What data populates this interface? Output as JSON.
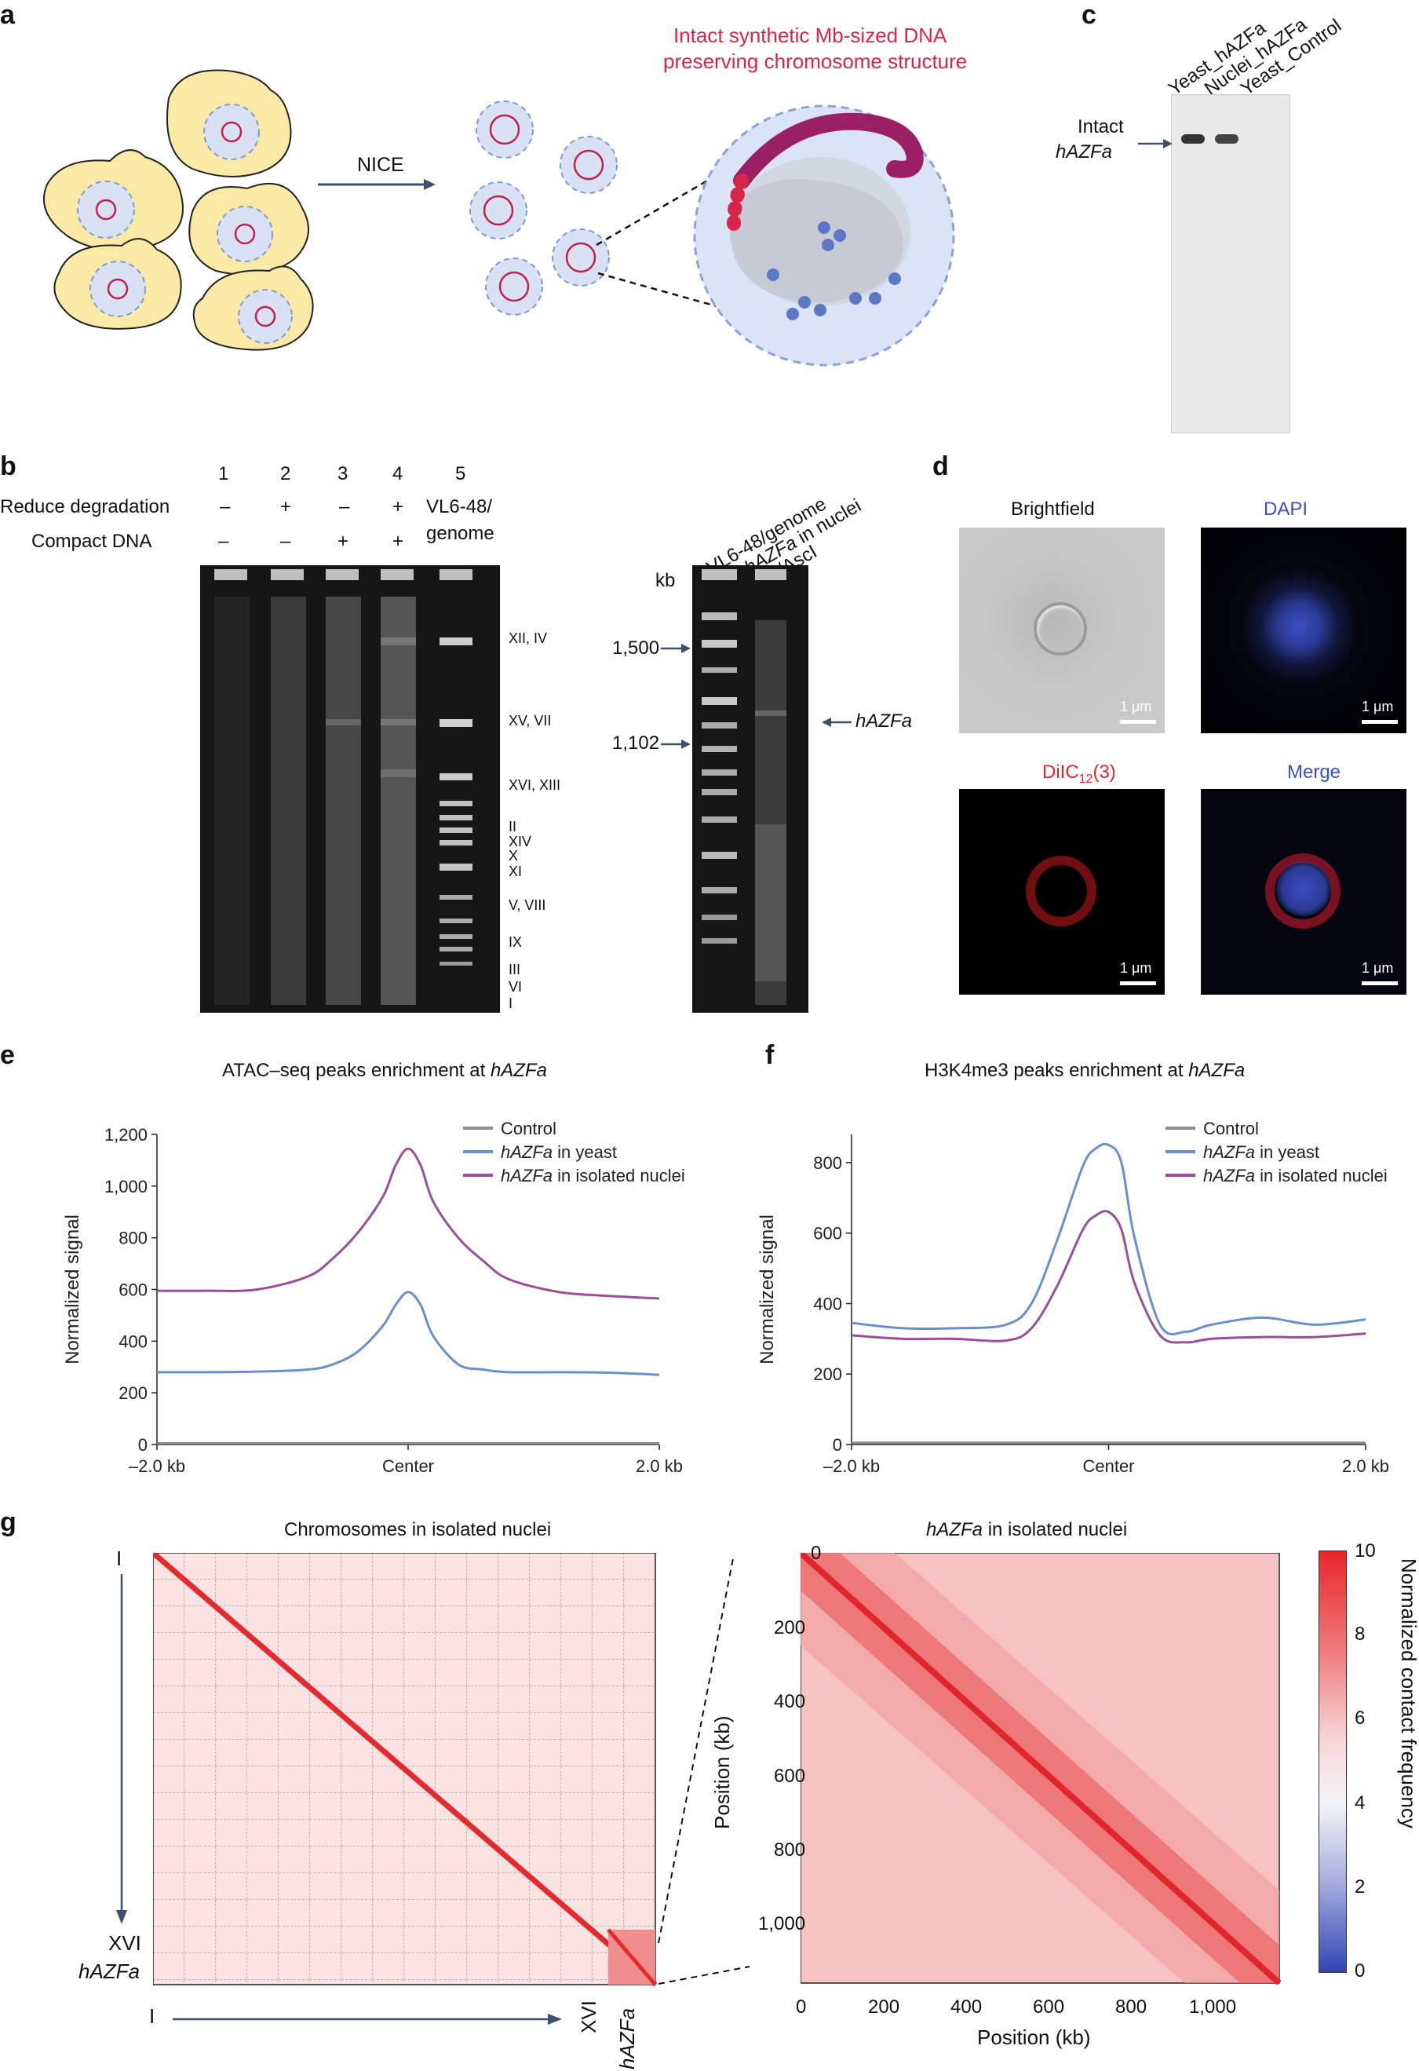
{
  "panels": {
    "a": "a",
    "b": "b",
    "c": "c",
    "d": "d",
    "e": "e",
    "f": "f",
    "g": "g"
  },
  "panel_a": {
    "arrow_label": "NICE",
    "caption_line1": "Intact synthetic Mb-sized DNA",
    "caption_line2": "preserving chromosome structure",
    "caption_color": "#d6264a"
  },
  "panel_b": {
    "lane_numbers": [
      "1",
      "2",
      "3",
      "4",
      "5"
    ],
    "row1_label": "Reduce degradation",
    "row2_label": "Compact DNA",
    "row1_marks": [
      "–",
      "+",
      "–",
      "+"
    ],
    "row2_marks": [
      "–",
      "–",
      "+",
      "+"
    ],
    "lane5_label_line1": "VL6-48/",
    "lane5_label_line2": "genome",
    "bands": [
      "XII, IV",
      "XV, VII",
      "XVI, XIII",
      "II",
      "XIV",
      "X",
      "XI",
      "V, VIII",
      "IX",
      "III",
      "VI",
      "I"
    ],
    "gel2_lane1": "VL6-48/genome",
    "gel2_lane2_line1_italic": "hAZFa",
    "gel2_lane2_line1_rest": " in nuclei",
    "gel2_lane2_line2": "/AscI",
    "kb_label": "kb",
    "markers": [
      "1,500",
      "1,102"
    ],
    "target_label": "hAZFa"
  },
  "panel_c": {
    "lanes": [
      "Yeast_hAZFa",
      "Nuclei_hAZFa",
      "Yeast_Control"
    ],
    "label_line1": "Intact",
    "label_line2": "hAZFa"
  },
  "panel_d": {
    "brightfield": "Brightfield",
    "dapi": "DAPI",
    "dil_main": "DiIC",
    "dil_sub": "12",
    "dil_suffix": "(3)",
    "merge": "Merge",
    "scale": "1 μm",
    "colors": {
      "dapi": "#3a4fc4",
      "dil": "#e0262b"
    }
  },
  "panel_e": {
    "title_prefix": "ATAC–seq peaks enrichment at ",
    "title_italic": "hAZFa",
    "ylabel": "Normalized signal",
    "yticks": [
      "1,200",
      "1,000",
      "800",
      "600",
      "400",
      "200",
      "0"
    ],
    "xticks": [
      "–2.0 kb",
      "Center",
      "2.0 kb"
    ],
    "legend": [
      {
        "italic": "",
        "text": "Control",
        "color": "#8c8c8c"
      },
      {
        "italic": "hAZFa",
        "text": " in yeast",
        "color": "#6a8fcf"
      },
      {
        "italic": "hAZFa",
        "text": " in isolated nuclei",
        "color": "#9b4f96"
      }
    ]
  },
  "panel_f": {
    "title_prefix": "H3K4me3 peaks enrichment at ",
    "title_italic": "hAZFa",
    "ylabel": "Normalized signal",
    "yticks": [
      "800",
      "600",
      "400",
      "200",
      "0"
    ],
    "xticks": [
      "–2.0 kb",
      "Center",
      "2.0 kb"
    ],
    "legend": [
      {
        "italic": "",
        "text": "Control",
        "color": "#8c8c8c"
      },
      {
        "italic": "hAZFa",
        "text": " in yeast",
        "color": "#6a8fcf"
      },
      {
        "italic": "hAZFa",
        "text": " in isolated nuclei",
        "color": "#9b4f96"
      }
    ]
  },
  "panel_g": {
    "left_title": "Chromosomes in isolated nuclei",
    "right_title_italic": "hAZFa",
    "right_title_rest": " in isolated nuclei",
    "row_top": "I",
    "row_bottom": "XVI",
    "row_extra": "hAZFa",
    "col_left": "I",
    "col_right": "XVI",
    "col_extra": "hAZFa",
    "ylabel": "Position (kb)",
    "xlabel": "Position (kb)",
    "ticks": [
      "0",
      "200",
      "400",
      "600",
      "800",
      "1,000"
    ],
    "colorbar_label": "Normalized contact frequency",
    "colorbar_ticks": [
      "10",
      "8",
      "6",
      "4",
      "2",
      "0"
    ]
  },
  "chart_data": [
    {
      "type": "line",
      "title": "ATAC–seq peaks enrichment at hAZFa",
      "xlabel": "",
      "ylabel": "Normalized signal",
      "x": [
        -2.0,
        -1.6,
        -1.2,
        -0.8,
        -0.6,
        -0.4,
        -0.2,
        -0.1,
        0,
        0.1,
        0.2,
        0.4,
        0.6,
        0.8,
        1.2,
        1.6,
        2.0
      ],
      "xlim": [
        -2.0,
        2.0
      ],
      "ylim": [
        0,
        1200
      ],
      "series": [
        {
          "name": "Control",
          "values": [
            5,
            5,
            5,
            5,
            5,
            5,
            5,
            5,
            5,
            5,
            5,
            5,
            5,
            5,
            5,
            5,
            5
          ]
        },
        {
          "name": "hAZFa in yeast",
          "values": [
            280,
            280,
            282,
            290,
            310,
            360,
            460,
            540,
            590,
            540,
            420,
            310,
            290,
            280,
            280,
            278,
            270
          ]
        },
        {
          "name": "hAZFa in isolated nuclei",
          "values": [
            595,
            595,
            600,
            650,
            720,
            820,
            960,
            1080,
            1145,
            1080,
            940,
            800,
            710,
            640,
            590,
            575,
            565
          ]
        }
      ]
    },
    {
      "type": "line",
      "title": "H3K4me3 peaks enrichment at hAZFa",
      "xlabel": "",
      "ylabel": "Normalized signal",
      "x": [
        -2.0,
        -1.6,
        -1.2,
        -0.8,
        -0.6,
        -0.4,
        -0.2,
        -0.1,
        0,
        0.1,
        0.2,
        0.4,
        0.6,
        0.8,
        1.2,
        1.6,
        2.0
      ],
      "xlim": [
        -2.0,
        2.0
      ],
      "ylim": [
        0,
        880
      ],
      "series": [
        {
          "name": "Control",
          "values": [
            5,
            5,
            5,
            5,
            5,
            5,
            5,
            5,
            5,
            5,
            5,
            5,
            5,
            5,
            5,
            5,
            5
          ]
        },
        {
          "name": "hAZFa in yeast",
          "values": [
            345,
            330,
            330,
            340,
            400,
            580,
            790,
            840,
            850,
            800,
            590,
            340,
            320,
            340,
            360,
            340,
            355
          ]
        },
        {
          "name": "hAZFa in isolated nuclei",
          "values": [
            310,
            300,
            300,
            295,
            330,
            450,
            610,
            650,
            660,
            610,
            460,
            310,
            290,
            300,
            305,
            305,
            315
          ]
        }
      ]
    }
  ]
}
